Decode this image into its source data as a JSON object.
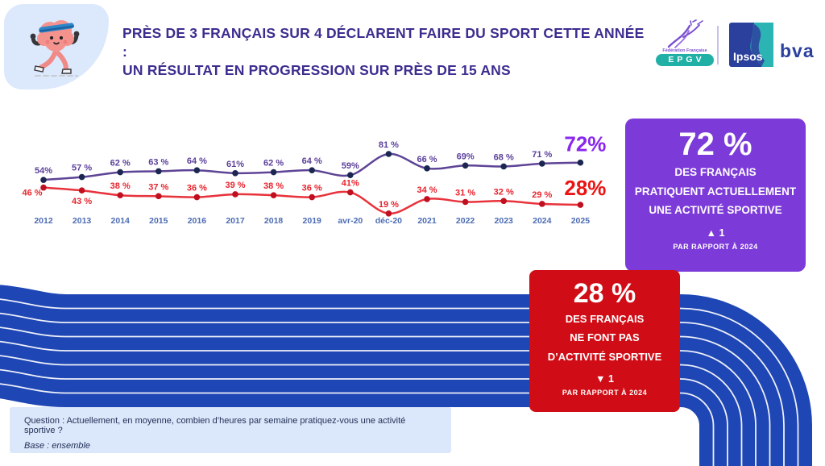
{
  "header": {
    "title_line1": "PRÈS DE 3 FRANÇAIS SUR 4 DÉCLARENT FAIRE DU SPORT CETTE ANNÉE :",
    "title_line2": "UN RÉSULTAT EN PROGRESSION SUR PRÈS DE 15 ANS",
    "logos": {
      "epgv_caption": "Fédération Française",
      "epgv": "EPGV",
      "ipsos": "Ipsos",
      "bva": "bva"
    }
  },
  "chart_data": {
    "type": "line",
    "title": "",
    "categories": [
      "2012",
      "2013",
      "2014",
      "2015",
      "2016",
      "2017",
      "2018",
      "2019",
      "avr-20",
      "déc-20",
      "2021",
      "2022",
      "2023",
      "2024",
      "2025"
    ],
    "series": [
      {
        "name": "Français pratiquant une activité sportive",
        "color": "#5e4496",
        "dot_color": "#1b2750",
        "label_color": "#5b3f9b",
        "final_label": "72%",
        "final_label_color": "#8927ef",
        "values": [
          54,
          57,
          62,
          63,
          64,
          61,
          62,
          64,
          59,
          81,
          66,
          69,
          68,
          71,
          72
        ],
        "labels": [
          "54%",
          "57 %",
          "62 %",
          "63 %",
          "64 %",
          "61%",
          "62 %",
          "64 %",
          "59%",
          "81 %",
          "66 %",
          "69%",
          "68 %",
          "71 %",
          "72%"
        ]
      },
      {
        "name": "Français ne faisant pas d’activité sportive",
        "color": "#e8323c",
        "dot_color": "#c01020",
        "label_color": "#e8242d",
        "final_label": "28%",
        "final_label_color": "#ec1313",
        "values": [
          46,
          43,
          38,
          37,
          36,
          39,
          38,
          36,
          41,
          19,
          34,
          31,
          32,
          29,
          28
        ],
        "labels": [
          "46 %",
          "43 %",
          "38 %",
          "37 %",
          "36 %",
          "39 %",
          "38 %",
          "36 %",
          "41%",
          "19 %",
          "34 %",
          "31 %",
          "32 %",
          "29 %",
          "28%"
        ]
      }
    ],
    "ylim": [
      15,
      85
    ],
    "grid": false,
    "legend": "none",
    "axes_hidden": true
  },
  "cards": {
    "sport": {
      "value": "72 %",
      "lines": [
        "DES FRANÇAIS",
        "PRATIQUENT ACTUELLEMENT",
        "UNE ACTIVITÉ SPORTIVE"
      ],
      "delta_icon": "▲",
      "delta_value": "1",
      "note": "PAR RAPPORT À 2024",
      "bg": "#7c3bd9"
    },
    "no_sport": {
      "value": "28 %",
      "lines": [
        "DES FRANÇAIS",
        "NE FONT PAS",
        "D’ACTIVITÉ SPORTIVE"
      ],
      "delta_icon": "▼",
      "delta_value": "1",
      "note": "PAR RAPPORT À 2024",
      "bg": "#d00d16"
    }
  },
  "footer": {
    "question": "Question : Actuellement, en moyenne, combien d’heures par semaine pratiquez-vous une activité sportive ?",
    "base": "Base : ensemble"
  },
  "colors": {
    "title": "#3c2d8f",
    "track": "#1e46b4",
    "axis_labels": "#4d6cb3",
    "blob": "#dce8fb",
    "question_bg": "#dbe7fa"
  },
  "icons": {
    "arrow_up": "▲",
    "arrow_down": "▼",
    "mascot": "brain-runner"
  }
}
